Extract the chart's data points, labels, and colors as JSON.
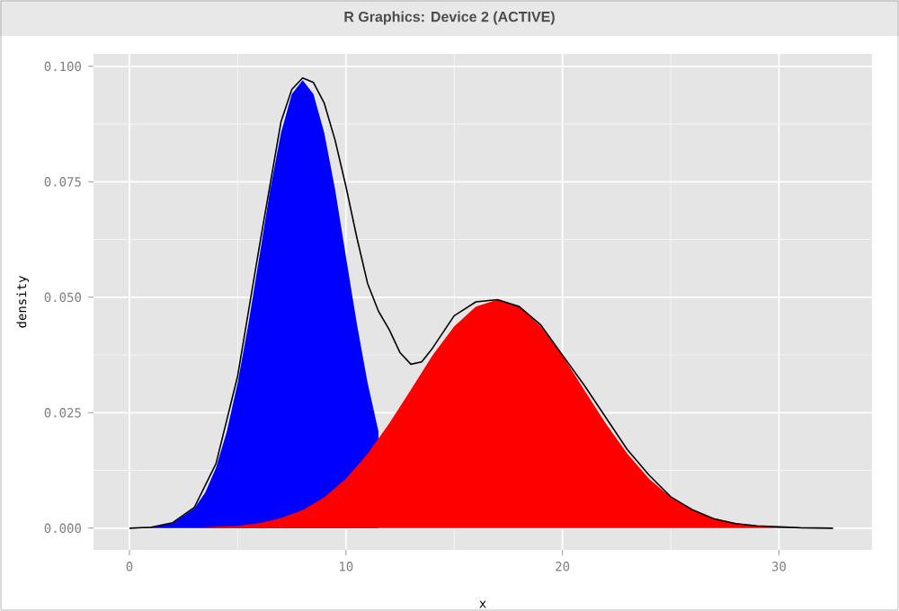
{
  "chart_data": {
    "type": "area",
    "title": "R Graphics: Device 2 (ACTIVE)",
    "xlabel": "x",
    "ylabel": "density",
    "xlim": [
      -1.66,
      34.3
    ],
    "ylim": [
      -0.0047,
      0.1027
    ],
    "xticks": [
      0,
      10,
      20,
      30
    ],
    "yticks": [
      {
        "value": 0,
        "label": "0.000"
      },
      {
        "value": 0.025,
        "label": "0.025"
      },
      {
        "value": 0.05,
        "label": "0.050"
      },
      {
        "value": 0.075,
        "label": "0.075"
      },
      {
        "value": 0.1,
        "label": "0.100"
      }
    ],
    "grid": true,
    "series": [
      {
        "color": "#0000ff",
        "x": [
          0,
          1,
          2,
          3,
          3.5,
          4,
          4.5,
          5,
          5.5,
          6,
          6.5,
          7,
          7.5,
          8,
          8.5,
          9,
          9.5,
          10,
          10.5,
          11,
          11.5
        ],
        "values": [
          0,
          0.0002,
          0.0011,
          0.0043,
          0.0077,
          0.0131,
          0.021,
          0.0315,
          0.0444,
          0.0588,
          0.0733,
          0.0856,
          0.094,
          0.097,
          0.094,
          0.0856,
          0.0733,
          0.0588,
          0.0444,
          0.0315,
          0.021
        ]
      },
      {
        "color": "#ff0000",
        "x": [
          3,
          4,
          5,
          6,
          7,
          8,
          9,
          10,
          11,
          12,
          13,
          14,
          15,
          16,
          17,
          18,
          19,
          20,
          21,
          22,
          23,
          24,
          25,
          26,
          27,
          28,
          29,
          30,
          31
        ],
        "values": [
          0.0001,
          0.0003,
          0.0005,
          0.0011,
          0.0022,
          0.0039,
          0.0067,
          0.0107,
          0.0161,
          0.0227,
          0.03,
          0.0374,
          0.0437,
          0.048,
          0.0495,
          0.048,
          0.0437,
          0.0374,
          0.03,
          0.0227,
          0.0161,
          0.0107,
          0.0067,
          0.0039,
          0.0022,
          0.0011,
          0.0005,
          0.0003,
          0.0001
        ]
      },
      {
        "type": "line",
        "color": "#000000",
        "x": [
          0,
          1,
          2,
          3,
          4,
          5,
          6,
          7,
          7.5,
          8,
          8.5,
          9,
          9.5,
          10,
          10.5,
          11,
          11.5,
          12,
          12.5,
          13,
          13.5,
          14,
          15,
          16,
          17,
          18,
          19,
          20,
          21,
          22,
          23,
          24,
          25,
          26,
          27,
          28,
          29,
          30,
          31,
          32.5
        ],
        "values": [
          0,
          0.0002,
          0.0012,
          0.0045,
          0.014,
          0.033,
          0.061,
          0.088,
          0.095,
          0.0975,
          0.0965,
          0.092,
          0.084,
          0.074,
          0.063,
          0.053,
          0.047,
          0.043,
          0.038,
          0.0355,
          0.036,
          0.039,
          0.046,
          0.049,
          0.0495,
          0.048,
          0.044,
          0.0375,
          0.031,
          0.024,
          0.017,
          0.0115,
          0.0068,
          0.004,
          0.002,
          0.001,
          0.0005,
          0.0003,
          0.0001,
          0
        ]
      }
    ]
  }
}
